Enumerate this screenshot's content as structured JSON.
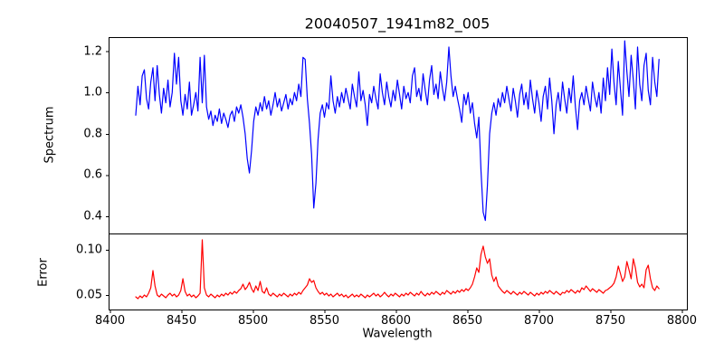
{
  "figure": {
    "title": "20040507_1941m82_005",
    "xlabel": "Wavelength",
    "background": "#ffffff",
    "text_color": "#000000"
  },
  "chart_data": {
    "type": "line",
    "title": "20040507_1941m82_005",
    "xlabel": "Wavelength",
    "grid": false,
    "legend": null,
    "x_start": 8418,
    "x_step": 1.5,
    "n_points": 245,
    "xlim": [
      8399,
      8803.5
    ],
    "x_tick_values": [
      8400,
      8450,
      8500,
      8550,
      8600,
      8650,
      8700,
      8750,
      8800
    ],
    "x_tick_labels": [
      "8400",
      "8450",
      "8500",
      "8550",
      "8600",
      "8650",
      "8700",
      "8750",
      "8800"
    ],
    "panels": [
      {
        "name": "spectrum",
        "ylabel": "Spectrum",
        "color": "#0000ff",
        "ylim": [
          0.317,
          1.268
        ],
        "y_tick_values": [
          0.4,
          0.6,
          0.8,
          1.0,
          1.2
        ],
        "y_tick_labels": [
          "0.4",
          "0.6",
          "0.8",
          "1.0",
          "1.2"
        ],
        "notable_features": "absorption dips at ~8498 (0.61), ~8542 (0.44), ~8662 (0.38); continuum ~1.0",
        "y": [
          0.89,
          1.03,
          0.94,
          1.08,
          1.11,
          0.97,
          0.92,
          1.05,
          1.12,
          0.96,
          1.13,
          0.99,
          0.9,
          1.02,
          0.95,
          1.06,
          0.93,
          1.0,
          1.19,
          1.04,
          1.17,
          0.96,
          0.89,
          0.99,
          0.92,
          1.05,
          0.89,
          0.94,
          1.0,
          0.91,
          1.17,
          0.95,
          1.18,
          0.93,
          0.87,
          0.91,
          0.84,
          0.89,
          0.86,
          0.92,
          0.85,
          0.9,
          0.87,
          0.83,
          0.89,
          0.91,
          0.86,
          0.93,
          0.9,
          0.94,
          0.88,
          0.8,
          0.68,
          0.61,
          0.72,
          0.86,
          0.93,
          0.89,
          0.95,
          0.91,
          0.98,
          0.92,
          0.96,
          0.89,
          0.94,
          1.0,
          0.93,
          0.97,
          0.91,
          0.95,
          0.99,
          0.92,
          0.97,
          0.94,
          1.0,
          0.96,
          1.04,
          0.98,
          1.17,
          1.16,
          0.97,
          0.85,
          0.7,
          0.44,
          0.56,
          0.77,
          0.9,
          0.94,
          0.88,
          0.95,
          0.92,
          1.08,
          0.96,
          0.9,
          0.98,
          0.93,
          1.0,
          0.95,
          1.02,
          0.97,
          0.92,
          1.04,
          0.98,
          0.93,
          1.1,
          0.96,
          1.01,
          0.94,
          0.84,
          0.99,
          0.95,
          1.03,
          0.97,
          0.92,
          1.09,
          1.0,
          0.94,
          1.05,
          0.98,
          0.93,
          1.01,
          0.96,
          1.06,
          0.99,
          0.92,
          1.03,
          0.97,
          1.0,
          0.95,
          1.08,
          1.12,
          0.98,
          1.02,
          0.96,
          1.09,
          1.01,
          0.94,
          1.06,
          1.13,
          0.99,
          1.04,
          0.97,
          1.1,
          1.02,
          0.96,
          1.05,
          1.22,
          1.08,
          0.98,
          1.03,
          0.97,
          0.92,
          0.855,
          0.99,
          0.94,
          1.0,
          0.9,
          0.95,
          0.85,
          0.78,
          0.88,
          0.62,
          0.42,
          0.38,
          0.55,
          0.8,
          0.9,
          0.95,
          0.89,
          0.97,
          0.93,
          1.0,
          0.95,
          1.03,
          0.97,
          0.91,
          1.02,
          0.96,
          0.88,
          0.99,
          1.04,
          0.94,
          1.0,
          0.92,
          1.06,
          0.97,
          0.9,
          1.01,
          0.95,
          0.86,
          0.98,
          1.03,
          0.92,
          1.07,
          0.96,
          0.8,
          0.94,
          1.0,
          0.91,
          1.05,
          0.97,
          0.9,
          1.02,
          0.95,
          1.08,
          0.93,
          0.82,
          0.96,
          1.0,
          0.94,
          1.03,
          0.97,
          0.91,
          1.05,
          0.98,
          0.93,
          1.0,
          0.9,
          1.07,
          0.96,
          1.12,
          0.99,
          1.21,
          1.05,
          0.94,
          1.15,
          1.02,
          0.89,
          1.25,
          1.1,
          0.98,
          1.18,
          1.06,
          0.92,
          1.22,
          1.04,
          0.96,
          1.13,
          1.19,
          1.01,
          0.94,
          1.17,
          1.05,
          0.98,
          1.16
        ]
      },
      {
        "name": "error",
        "ylabel": "Error",
        "color": "#ff0000",
        "ylim": [
          0.034,
          0.118
        ],
        "y_tick_values": [
          0.05,
          0.1
        ],
        "y_tick_labels": [
          "0.05",
          "0.10"
        ],
        "notable_features": "baseline ~0.05; spikes at ~8430 (0.077), ~8464 (0.111), ~8661 (0.104), ~8755-8777 (0.08-0.09)",
        "y": [
          0.048,
          0.046,
          0.049,
          0.047,
          0.05,
          0.048,
          0.052,
          0.058,
          0.077,
          0.06,
          0.05,
          0.048,
          0.051,
          0.049,
          0.047,
          0.05,
          0.052,
          0.049,
          0.051,
          0.048,
          0.05,
          0.055,
          0.068,
          0.054,
          0.049,
          0.051,
          0.048,
          0.05,
          0.047,
          0.049,
          0.052,
          0.111,
          0.058,
          0.05,
          0.048,
          0.051,
          0.049,
          0.047,
          0.05,
          0.048,
          0.051,
          0.049,
          0.052,
          0.05,
          0.053,
          0.051,
          0.054,
          0.052,
          0.055,
          0.057,
          0.062,
          0.056,
          0.059,
          0.064,
          0.057,
          0.053,
          0.06,
          0.055,
          0.065,
          0.054,
          0.052,
          0.058,
          0.051,
          0.049,
          0.052,
          0.05,
          0.048,
          0.051,
          0.049,
          0.052,
          0.05,
          0.048,
          0.051,
          0.049,
          0.052,
          0.05,
          0.053,
          0.051,
          0.055,
          0.058,
          0.061,
          0.068,
          0.064,
          0.066,
          0.058,
          0.054,
          0.051,
          0.053,
          0.05,
          0.052,
          0.049,
          0.051,
          0.048,
          0.05,
          0.052,
          0.049,
          0.051,
          0.048,
          0.05,
          0.047,
          0.049,
          0.051,
          0.048,
          0.05,
          0.048,
          0.051,
          0.049,
          0.047,
          0.05,
          0.048,
          0.05,
          0.052,
          0.049,
          0.051,
          0.048,
          0.05,
          0.053,
          0.05,
          0.048,
          0.051,
          0.049,
          0.052,
          0.05,
          0.048,
          0.051,
          0.049,
          0.052,
          0.05,
          0.053,
          0.051,
          0.049,
          0.052,
          0.05,
          0.054,
          0.051,
          0.049,
          0.052,
          0.05,
          0.053,
          0.051,
          0.054,
          0.052,
          0.05,
          0.053,
          0.051,
          0.055,
          0.053,
          0.051,
          0.054,
          0.052,
          0.055,
          0.053,
          0.056,
          0.054,
          0.057,
          0.055,
          0.058,
          0.062,
          0.07,
          0.08,
          0.075,
          0.095,
          0.104,
          0.092,
          0.085,
          0.09,
          0.072,
          0.065,
          0.07,
          0.06,
          0.057,
          0.054,
          0.052,
          0.055,
          0.053,
          0.051,
          0.054,
          0.052,
          0.05,
          0.053,
          0.051,
          0.054,
          0.052,
          0.05,
          0.053,
          0.051,
          0.049,
          0.052,
          0.05,
          0.053,
          0.051,
          0.054,
          0.052,
          0.055,
          0.053,
          0.051,
          0.054,
          0.052,
          0.05,
          0.053,
          0.052,
          0.055,
          0.053,
          0.056,
          0.054,
          0.052,
          0.055,
          0.053,
          0.058,
          0.056,
          0.06,
          0.057,
          0.054,
          0.057,
          0.055,
          0.053,
          0.056,
          0.054,
          0.052,
          0.055,
          0.056,
          0.058,
          0.06,
          0.063,
          0.07,
          0.082,
          0.074,
          0.065,
          0.07,
          0.087,
          0.078,
          0.068,
          0.09,
          0.08,
          0.064,
          0.059,
          0.062,
          0.058,
          0.078,
          0.083,
          0.068,
          0.058,
          0.055,
          0.06,
          0.057
        ]
      }
    ]
  }
}
